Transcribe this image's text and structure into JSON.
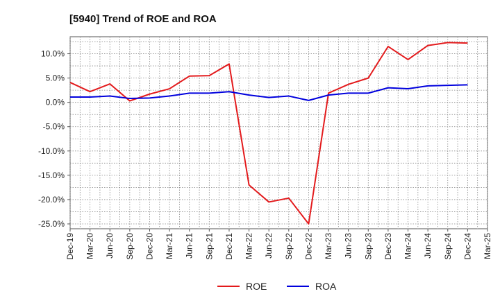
{
  "chart_data": {
    "type": "line",
    "title": "[5940]  Trend of ROE and ROA",
    "x": [
      "Dec-19",
      "Mar-20",
      "Jun-20",
      "Sep-20",
      "Dec-20",
      "Mar-21",
      "Jun-21",
      "Sep-21",
      "Dec-21",
      "Mar-22",
      "Jun-22",
      "Sep-22",
      "Dec-22",
      "Mar-23",
      "Jun-23",
      "Sep-23",
      "Dec-23",
      "Mar-24",
      "Jun-24",
      "Sep-24",
      "Dec-24",
      "Mar-25"
    ],
    "series": [
      {
        "name": "ROE",
        "color": "#e31a1c",
        "values": [
          4.1,
          2.2,
          3.8,
          0.3,
          1.7,
          2.8,
          5.4,
          5.5,
          7.9,
          -17.0,
          -20.5,
          -19.7,
          -25.0,
          1.9,
          3.7,
          5.0,
          11.5,
          8.8,
          11.7,
          12.3,
          12.2,
          null
        ]
      },
      {
        "name": "ROA",
        "color": "#0000dd",
        "values": [
          1.1,
          1.1,
          1.3,
          0.8,
          0.9,
          1.3,
          1.9,
          1.9,
          2.2,
          1.5,
          1.0,
          1.3,
          0.4,
          1.5,
          1.9,
          1.9,
          3.0,
          2.8,
          3.4,
          3.5,
          3.6,
          null
        ]
      }
    ],
    "yticks": [
      10.0,
      5.0,
      0.0,
      -5.0,
      -10.0,
      -15.0,
      -20.0,
      -25.0
    ],
    "ylim": [
      -26,
      13.5
    ],
    "grid": true,
    "legend_position": "bottom-center",
    "xlabel": "",
    "ylabel": ""
  }
}
